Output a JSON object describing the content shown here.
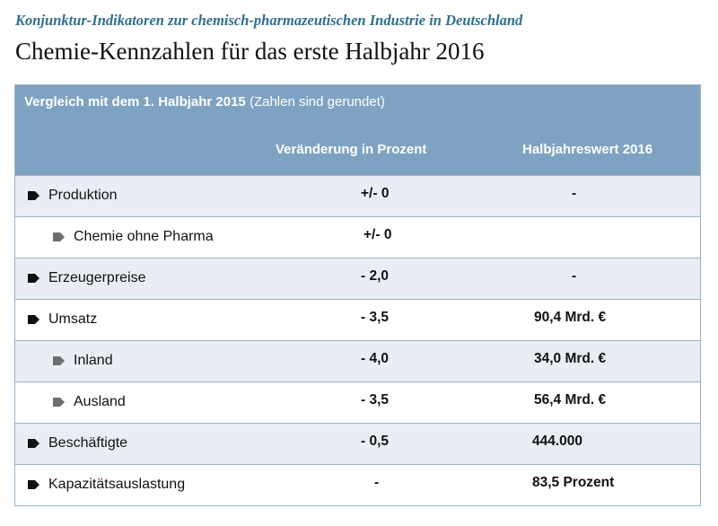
{
  "header": {
    "kicker": "Konjunktur-Indikatoren zur chemisch-pharmazeutischen Industrie in Deutschland",
    "title": "Chemie-Kennzahlen für das erste Halbjahr 2016"
  },
  "table": {
    "subtitle_bold": "Vergleich mit dem 1. Halbjahr 2015",
    "subtitle_normal": " (Zahlen sind gerundet)",
    "col_change": "Veränderung in Prozent",
    "col_value": "Halbjahreswert 2016",
    "rows": [
      {
        "label": "Produktion",
        "change": "+/- 0",
        "value": "-"
      },
      {
        "label": "Chemie ohne Pharma",
        "change": "+/- 0",
        "value": ""
      },
      {
        "label": "Erzeugerpreise",
        "change": "- 2,0",
        "value": "-"
      },
      {
        "label": "Umsatz",
        "change": "- 3,5",
        "value": "90,4 Mrd. €"
      },
      {
        "label": "Inland",
        "change": "- 4,0",
        "value": "34,0 Mrd. €"
      },
      {
        "label": "Ausland",
        "change": "- 3,5",
        "value": "56,4 Mrd. €"
      },
      {
        "label": "Beschäftigte",
        "change": "- 0,5",
        "value": "444.000"
      },
      {
        "label": "Kapazitätsauslastung",
        "change": "-",
        "value": "83,5 Prozent"
      }
    ]
  },
  "colors": {
    "header_bg": "#7ea3c2",
    "shade_row": "#e9eef4",
    "kicker": "#2e6f93",
    "bullet_main": "#111111",
    "bullet_sub": "#6e6e6e"
  }
}
